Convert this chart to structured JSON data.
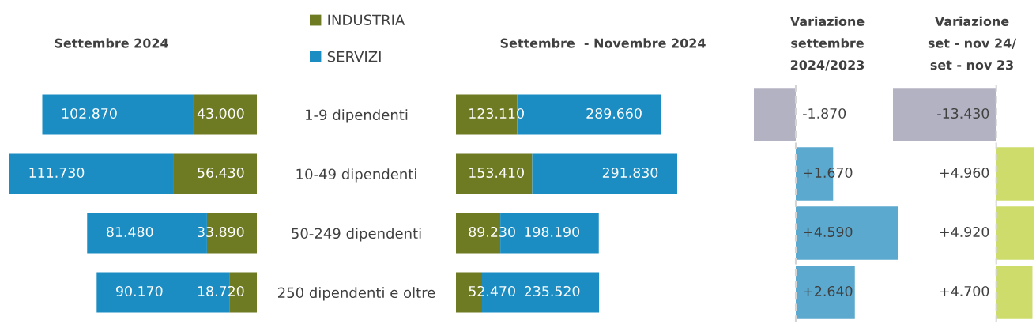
{
  "chart_data": [
    {
      "type": "bar",
      "orientation": "horizontal",
      "stacked": true,
      "title": "Settembre 2024",
      "categories": [
        null,
        null,
        null,
        null
      ],
      "series": [
        {
          "name": "INDUSTRIA",
          "color": "#6e7b22",
          "values": [
            43000,
            56430,
            33890,
            18720
          ],
          "value_labels": [
            "43.000",
            "56.430",
            "33.890",
            "18.720"
          ]
        },
        {
          "name": "SERVIZI",
          "color": "#1b8dc2",
          "values": [
            102870,
            111730,
            81480,
            90170
          ],
          "value_labels": [
            "102.870",
            "111.730",
            "81.480",
            "90.170"
          ]
        }
      ],
      "xlim": [
        168160,
        0
      ],
      "legend": "top right"
    },
    {
      "type": "bar",
      "orientation": "horizontal",
      "stacked": true,
      "title": "Settembre  - Novembre 2024",
      "categories": [
        "1-9 dipendenti",
        "10-49 dipendenti",
        "50-249 dipendenti",
        "250 dipendenti e oltre"
      ],
      "series": [
        {
          "color": "#6e7b22",
          "values": [
            123110,
            153410,
            89230,
            52470
          ],
          "value_labels": [
            "123.110",
            "153.410",
            "89.230",
            "52.470"
          ]
        },
        {
          "color": "#1b8dc2",
          "values": [
            289660,
            291830,
            198190,
            235520
          ],
          "value_labels": [
            "289.660",
            "291.830",
            "198.190",
            "235.520"
          ]
        }
      ],
      "xlim": [
        0,
        445240
      ],
      "tick_labels": "y"
    },
    {
      "type": "bar",
      "orientation": "horizontal",
      "title": "Variazione\nsettembre\n2024/2023",
      "categories": [
        null,
        null,
        null,
        null
      ],
      "values": [
        -1870,
        1670,
        4590,
        2640
      ],
      "value_labels": [
        "-1.870",
        "+1.670",
        "+4.590",
        "+2.640"
      ],
      "colors": [
        "#b3b2c2",
        "#5ba9cf",
        "#5ba9cf",
        "#5ba9cf"
      ],
      "xlim": [
        -1870,
        4590
      ],
      "ref_lines": [
        {
          "axis": "x",
          "value": 0,
          "color": "#d4d4d4",
          "line_style": "dashed"
        }
      ]
    },
    {
      "type": "bar",
      "orientation": "horizontal",
      "title": "Variazione\nset - nov 24/\nset - nov 23",
      "categories": [
        null,
        null,
        null,
        null
      ],
      "values": [
        -13430,
        4960,
        4920,
        4700
      ],
      "value_labels": [
        "-13.430",
        "+4.960",
        "+4.920",
        "+4.700"
      ],
      "colors": [
        "#b3b2c2",
        "#cddc6a",
        "#cddc6a",
        "#cddc6a"
      ],
      "xlim": [
        -13430,
        4960
      ],
      "ref_lines": [
        {
          "axis": "x",
          "value": 0,
          "color": "#d4d4d4",
          "line_style": "dashed"
        }
      ]
    }
  ]
}
